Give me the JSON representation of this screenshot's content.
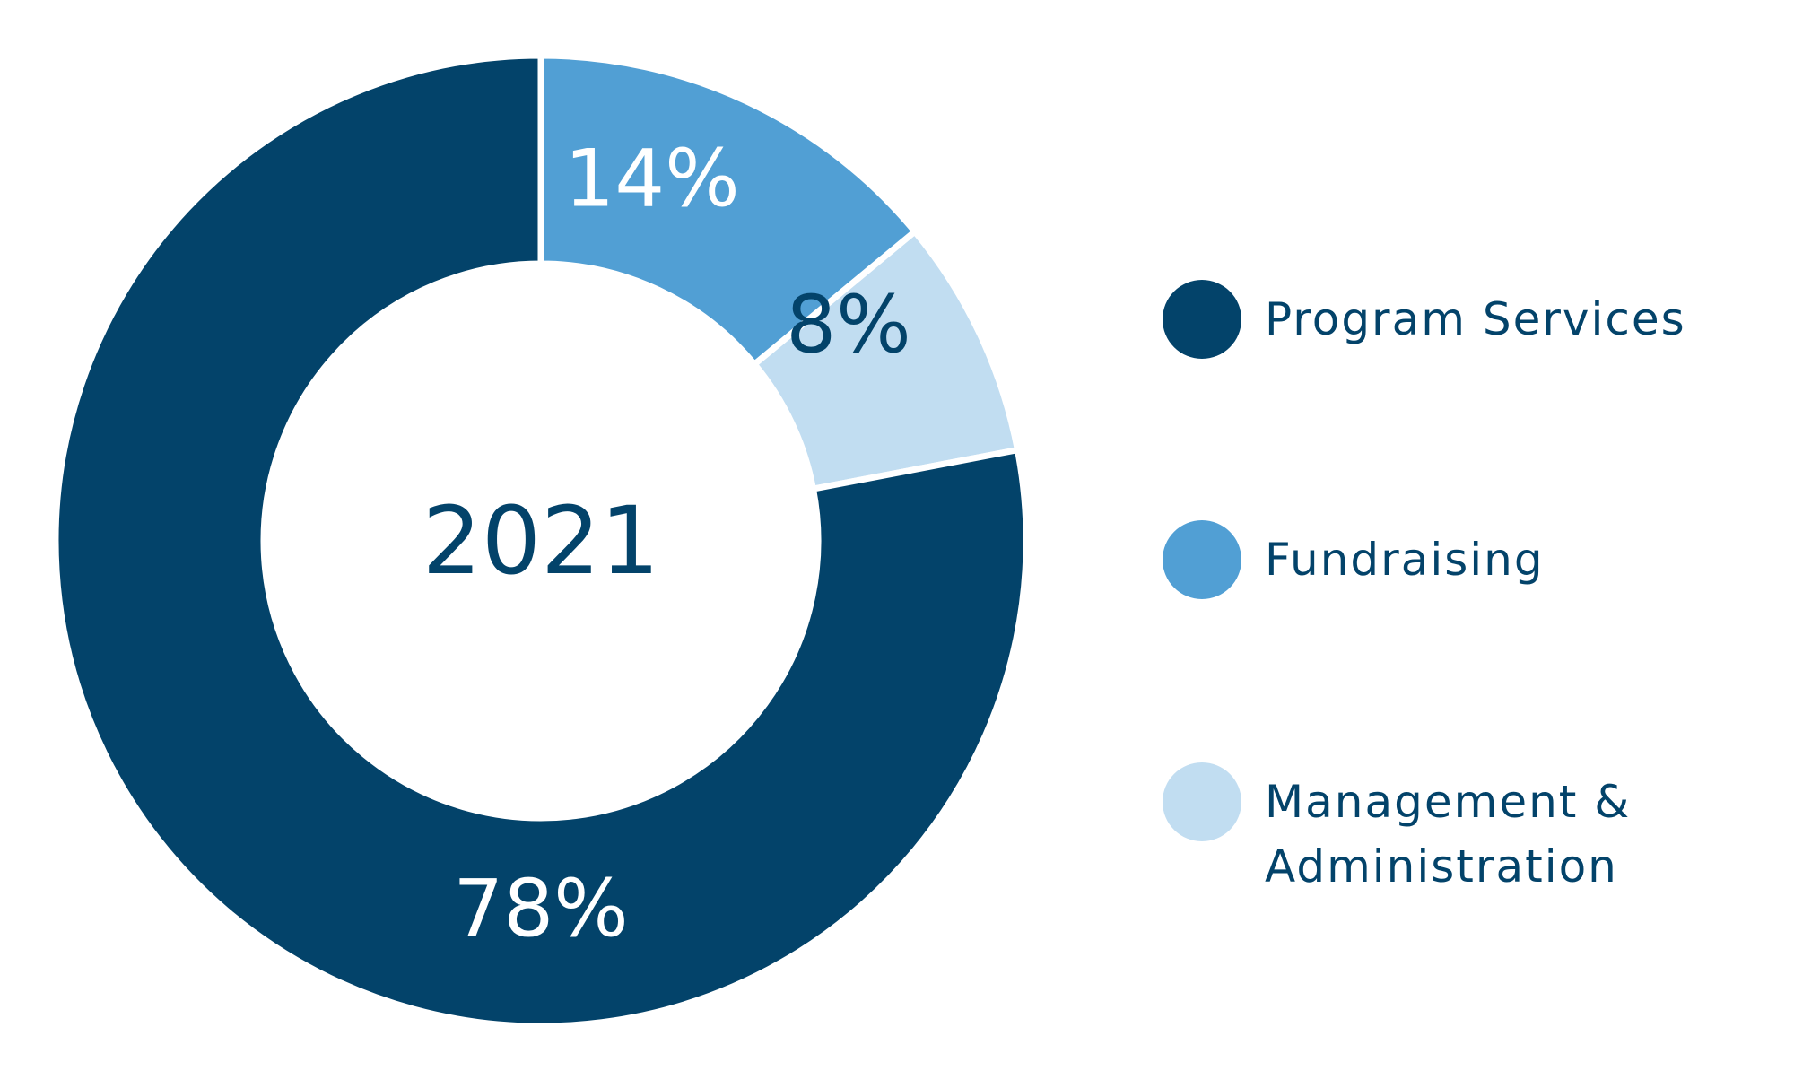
{
  "chart_data": {
    "type": "donut",
    "center_label": "2021",
    "categories": [
      "Program Services",
      "Fundraising",
      "Management & Administration"
    ],
    "values": [
      78,
      14,
      8
    ],
    "value_labels": [
      "78%",
      "14%",
      "8%"
    ],
    "colors": [
      "#03436a",
      "#519fd4",
      "#c1ddf1"
    ]
  }
}
